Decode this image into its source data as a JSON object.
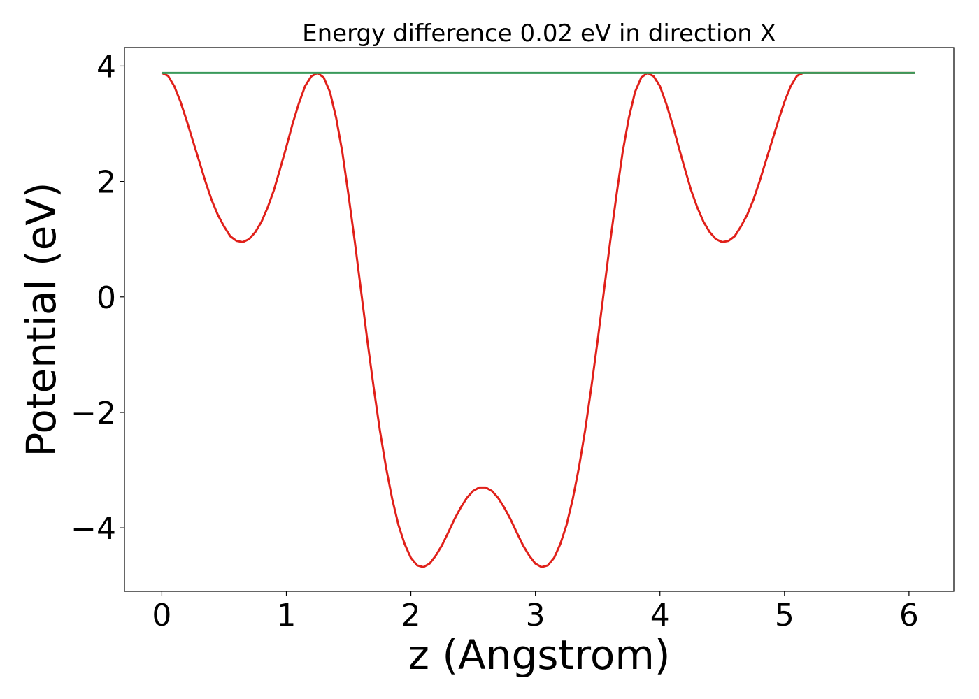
{
  "chart_data": {
    "type": "line",
    "title": "Energy difference 0.02 eV in direction X",
    "xlabel": "z (Angstrom)",
    "ylabel": "Potential (eV)",
    "xlim": [
      -0.3,
      6.36
    ],
    "ylim": [
      -5.1,
      4.32
    ],
    "xticks": [
      0,
      1,
      2,
      3,
      4,
      5,
      6
    ],
    "xtick_labels": [
      "0",
      "1",
      "2",
      "3",
      "4",
      "5",
      "6"
    ],
    "yticks": [
      -4,
      -2,
      0,
      2,
      4
    ],
    "ytick_labels": [
      "−4",
      "−2",
      "0",
      "2",
      "4"
    ],
    "grid": false,
    "legend": "none",
    "series": [
      {
        "color": "#e0201a",
        "x": [
          0.0,
          0.05,
          0.1,
          0.15,
          0.2,
          0.25,
          0.3,
          0.35,
          0.4,
          0.45,
          0.5,
          0.55,
          0.6,
          0.65,
          0.7,
          0.75,
          0.8,
          0.85,
          0.9,
          0.95,
          1.0,
          1.05,
          1.1,
          1.15,
          1.2,
          1.25,
          1.3,
          1.35,
          1.4,
          1.45,
          1.5,
          1.55,
          1.6,
          1.65,
          1.7,
          1.75,
          1.8,
          1.85,
          1.9,
          1.95,
          2.0,
          2.05,
          2.1,
          2.15,
          2.2,
          2.25,
          2.3,
          2.35,
          2.4,
          2.45,
          2.5,
          2.55,
          2.6,
          2.65,
          2.7,
          2.75,
          2.8,
          2.85,
          2.9,
          2.95,
          3.0,
          3.05,
          3.1,
          3.15,
          3.2,
          3.25,
          3.3,
          3.35,
          3.4,
          3.45,
          3.5,
          3.55,
          3.6,
          3.65,
          3.7,
          3.75,
          3.8,
          3.85,
          3.9,
          3.95,
          4.0,
          4.05,
          4.1,
          4.15,
          4.2,
          4.25,
          4.3,
          4.35,
          4.4,
          4.45,
          4.5,
          4.55,
          4.6,
          4.65,
          4.7,
          4.75,
          4.8,
          4.85,
          4.9,
          4.95,
          5.0,
          5.05,
          5.1,
          5.15,
          5.2,
          5.25,
          5.3,
          5.35,
          5.4,
          5.45,
          5.5,
          5.55,
          5.6,
          5.65,
          5.7,
          5.75,
          5.8,
          5.85,
          5.9,
          5.95,
          6.0,
          6.05
        ],
        "y": [
          3.88,
          3.83,
          3.65,
          3.38,
          3.05,
          2.7,
          2.35,
          2.0,
          1.68,
          1.42,
          1.22,
          1.05,
          0.97,
          0.95,
          1.0,
          1.12,
          1.3,
          1.55,
          1.85,
          2.22,
          2.6,
          3.0,
          3.35,
          3.65,
          3.82,
          3.88,
          3.8,
          3.55,
          3.1,
          2.5,
          1.75,
          0.95,
          0.1,
          -0.75,
          -1.55,
          -2.3,
          -2.95,
          -3.5,
          -3.95,
          -4.28,
          -4.52,
          -4.65,
          -4.68,
          -4.62,
          -4.48,
          -4.3,
          -4.08,
          -3.85,
          -3.65,
          -3.48,
          -3.36,
          -3.3,
          -3.3,
          -3.36,
          -3.48,
          -3.65,
          -3.85,
          -4.08,
          -4.3,
          -4.48,
          -4.62,
          -4.68,
          -4.65,
          -4.52,
          -4.28,
          -3.95,
          -3.5,
          -2.95,
          -2.3,
          -1.55,
          -0.75,
          0.1,
          0.95,
          1.75,
          2.5,
          3.1,
          3.55,
          3.8,
          3.88,
          3.82,
          3.65,
          3.35,
          3.0,
          2.6,
          2.22,
          1.85,
          1.55,
          1.3,
          1.12,
          1.0,
          0.95,
          0.97,
          1.05,
          1.22,
          1.42,
          1.68,
          2.0,
          2.35,
          2.7,
          3.05,
          3.38,
          3.65,
          3.83,
          3.88,
          3.88,
          3.88,
          3.88,
          3.88,
          3.88,
          3.88,
          3.88,
          3.88,
          3.88,
          3.88,
          3.88,
          3.88,
          3.88,
          3.88,
          3.88,
          3.88,
          3.88,
          3.88
        ]
      },
      {
        "color": "#3a9a5b",
        "x": [
          0.0,
          6.05
        ],
        "y": [
          3.88,
          3.88
        ]
      }
    ]
  }
}
